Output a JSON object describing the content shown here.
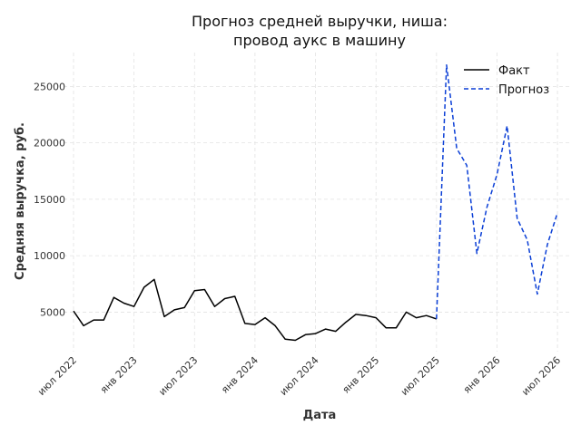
{
  "chart_data": {
    "type": "line",
    "title_lines": [
      "Прогноз средней выручки, ниша:",
      "провод аукс в машину"
    ],
    "xlabel": "Дата",
    "ylabel": "Средняя выручка, руб.",
    "x_tick_labels": [
      "июл 2022",
      "янв 2023",
      "июл 2023",
      "янв 2024",
      "июл 2024",
      "янв 2025",
      "июл 2025",
      "янв 2026",
      "июл 2026"
    ],
    "y_ticks": [
      5000,
      10000,
      15000,
      20000,
      25000
    ],
    "ylim": [
      1500,
      28000
    ],
    "xlim": [
      "2022-06",
      "2026-08"
    ],
    "grid": true,
    "legend_position": "top-right",
    "series": [
      {
        "name": "Факт",
        "style": "solid",
        "color": "#000000",
        "x": [
          "2022-07",
          "2022-08",
          "2022-09",
          "2022-10",
          "2022-11",
          "2022-12",
          "2023-01",
          "2023-02",
          "2023-03",
          "2023-04",
          "2023-05",
          "2023-06",
          "2023-07",
          "2023-08",
          "2023-09",
          "2023-10",
          "2023-11",
          "2023-12",
          "2024-01",
          "2024-02",
          "2024-03",
          "2024-04",
          "2024-05",
          "2024-06",
          "2024-07",
          "2024-08",
          "2024-09",
          "2024-10",
          "2024-11",
          "2024-12",
          "2025-01",
          "2025-02",
          "2025-03",
          "2025-04",
          "2025-05",
          "2025-06",
          "2025-07"
        ],
        "values": [
          5100,
          3800,
          4300,
          4300,
          6300,
          5800,
          5500,
          7200,
          7900,
          4600,
          5200,
          5400,
          6900,
          7000,
          5500,
          6200,
          6400,
          4000,
          3900,
          4500,
          3800,
          2600,
          2500,
          3000,
          3100,
          3500,
          3300,
          4100,
          4800,
          4700,
          4500,
          3600,
          3600,
          5000,
          4500,
          4700,
          4400
        ]
      },
      {
        "name": "Прогноз",
        "style": "dashed",
        "color": "#0b3fd6",
        "x": [
          "2025-07",
          "2025-08",
          "2025-09",
          "2025-10",
          "2025-11",
          "2025-12",
          "2026-01",
          "2026-02",
          "2026-03",
          "2026-04",
          "2026-05",
          "2026-06",
          "2026-07"
        ],
        "values": [
          4400,
          26900,
          19500,
          18000,
          10200,
          14300,
          17200,
          21500,
          13300,
          11400,
          6600,
          11000,
          13800
        ]
      }
    ]
  }
}
